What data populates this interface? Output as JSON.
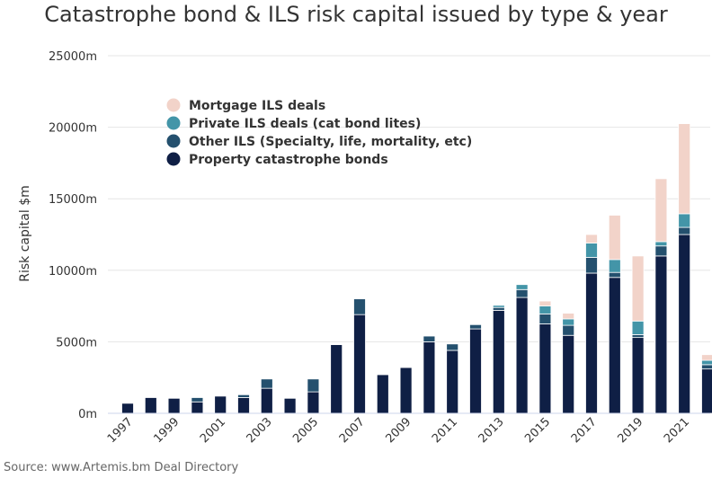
{
  "chart_data": {
    "type": "bar",
    "stacked": true,
    "title": "Catastrophe bond & ILS risk capital issued by type & year",
    "ylabel": "Risk capital $m",
    "xlabel": "",
    "source": "Source: www.Artemis.bm Deal Directory",
    "ylim": [
      0,
      25000
    ],
    "yticks": [
      "0m",
      "5000m",
      "10000m",
      "15000m",
      "20000m",
      "25000m"
    ],
    "ytick_values": [
      0,
      5000,
      10000,
      15000,
      20000,
      25000
    ],
    "grid": true,
    "legend_position": "top-left",
    "categories": [
      "1997",
      "1998",
      "1999",
      "2000",
      "2001",
      "2002",
      "2003",
      "2004",
      "2005",
      "2006",
      "2007",
      "2008",
      "2009",
      "2010",
      "2011",
      "2012",
      "2013",
      "2014",
      "2015",
      "2016",
      "2017",
      "2018",
      "2019",
      "2020",
      "2021",
      "2022"
    ],
    "x_tick_labels": [
      "1997",
      "1999",
      "2001",
      "2003",
      "2005",
      "2007",
      "2009",
      "2011",
      "2013",
      "2015",
      "2017",
      "2019",
      "2021"
    ],
    "series": [
      {
        "name": "Property catastrophe bonds",
        "color": "#0f1f45",
        "values": [
          700,
          1100,
          1050,
          800,
          1200,
          1100,
          1750,
          1050,
          1500,
          4800,
          6900,
          2700,
          3200,
          5000,
          4400,
          5900,
          7200,
          8100,
          6250,
          5450,
          9800,
          9500,
          5300,
          11000,
          12500,
          3100
        ]
      },
      {
        "name": "Other ILS (Specialty, life, mortality, etc)",
        "color": "#24506e",
        "values": [
          0,
          0,
          0,
          300,
          0,
          200,
          650,
          0,
          900,
          0,
          1100,
          0,
          0,
          400,
          450,
          300,
          200,
          550,
          700,
          700,
          1100,
          350,
          200,
          700,
          500,
          300
        ]
      },
      {
        "name": "Private ILS deals (cat bond lites)",
        "color": "#4395a8",
        "values": [
          0,
          0,
          0,
          0,
          0,
          0,
          0,
          0,
          0,
          0,
          0,
          0,
          0,
          0,
          0,
          0,
          150,
          350,
          550,
          450,
          1000,
          900,
          950,
          300,
          950,
          300
        ]
      },
      {
        "name": "Mortgage ILS deals",
        "color": "#f2d3c9",
        "values": [
          0,
          0,
          0,
          0,
          0,
          0,
          0,
          0,
          0,
          0,
          0,
          0,
          0,
          0,
          0,
          0,
          0,
          0,
          350,
          400,
          600,
          3100,
          4550,
          4400,
          6300,
          400
        ]
      }
    ],
    "legend_order": [
      "Mortgage ILS deals",
      "Private ILS deals (cat bond lites)",
      "Other ILS (Specialty, life, mortality, etc)",
      "Property catastrophe bonds"
    ]
  }
}
